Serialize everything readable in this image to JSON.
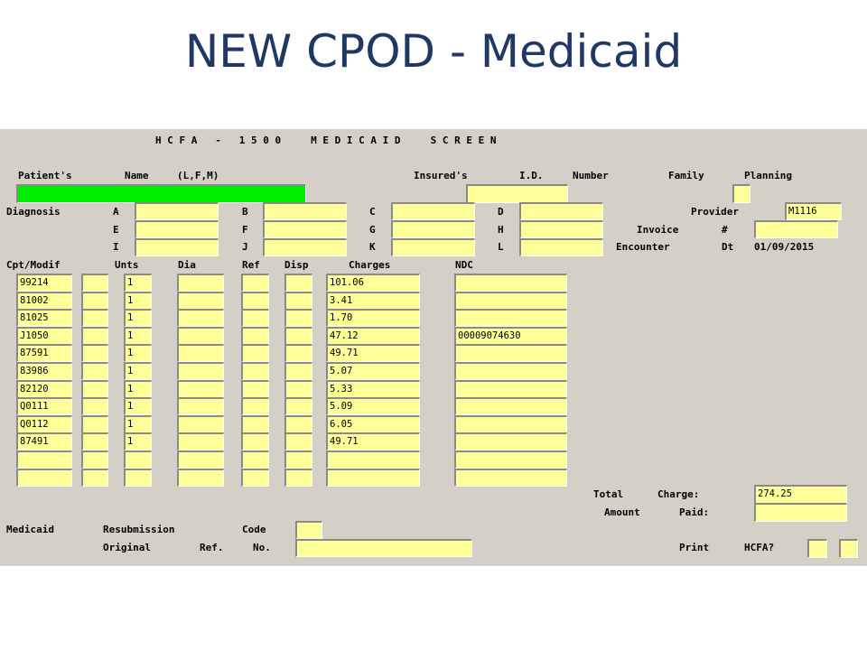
{
  "slide": {
    "title": "NEW CPOD - Medicaid"
  },
  "screen": {
    "heading": "H C F A   -   1 5 0 0     M E D I C A I D     S C R E E N",
    "patient": {
      "label": "Patient's",
      "name_label": "Name",
      "name_format": "(L,F,M)",
      "name_value": ""
    },
    "insured": {
      "label": "Insured's",
      "id_label": "I.D.",
      "number_label": "Number",
      "value": ""
    },
    "family_planning": {
      "family_label": "Family",
      "planning_label": "Planning",
      "value": ""
    },
    "provider": {
      "label": "Provider",
      "value": "M1116"
    },
    "invoice": {
      "label": "Invoice",
      "hash": "#",
      "value": ""
    },
    "encounter": {
      "label": "Encounter",
      "dt_label": "Dt",
      "value": "01/09/2015"
    },
    "diagnosis": {
      "label": "Diagnosis",
      "codes": [
        {
          "letter": "A",
          "value": ""
        },
        {
          "letter": "B",
          "value": ""
        },
        {
          "letter": "C",
          "value": ""
        },
        {
          "letter": "D",
          "value": ""
        },
        {
          "letter": "E",
          "value": ""
        },
        {
          "letter": "F",
          "value": ""
        },
        {
          "letter": "G",
          "value": ""
        },
        {
          "letter": "H",
          "value": ""
        },
        {
          "letter": "I",
          "value": ""
        },
        {
          "letter": "J",
          "value": ""
        },
        {
          "letter": "K",
          "value": ""
        },
        {
          "letter": "L",
          "value": ""
        }
      ]
    },
    "lines": {
      "headers": {
        "cpt": "Cpt/Modif",
        "units": "Unts",
        "dia": "Dia",
        "ref": "Ref",
        "disp": "Disp",
        "charges": "Charges",
        "ndc": "NDC"
      },
      "rows": [
        {
          "cpt": "99214",
          "modif": "",
          "units": "1",
          "dia": "",
          "ref": "",
          "disp": "",
          "charges": "101.06",
          "ndc": ""
        },
        {
          "cpt": "81002",
          "modif": "",
          "units": "1",
          "dia": "",
          "ref": "",
          "disp": "",
          "charges": "3.41",
          "ndc": ""
        },
        {
          "cpt": "81025",
          "modif": "",
          "units": "1",
          "dia": "",
          "ref": "",
          "disp": "",
          "charges": "1.70",
          "ndc": ""
        },
        {
          "cpt": "J1050",
          "modif": "",
          "units": "1",
          "dia": "",
          "ref": "",
          "disp": "",
          "charges": "47.12",
          "ndc": "00009074630"
        },
        {
          "cpt": "87591",
          "modif": "",
          "units": "1",
          "dia": "",
          "ref": "",
          "disp": "",
          "charges": "49.71",
          "ndc": ""
        },
        {
          "cpt": "83986",
          "modif": "",
          "units": "1",
          "dia": "",
          "ref": "",
          "disp": "",
          "charges": "5.07",
          "ndc": ""
        },
        {
          "cpt": "82120",
          "modif": "",
          "units": "1",
          "dia": "",
          "ref": "",
          "disp": "",
          "charges": "5.33",
          "ndc": ""
        },
        {
          "cpt": "Q0111",
          "modif": "",
          "units": "1",
          "dia": "",
          "ref": "",
          "disp": "",
          "charges": "5.09",
          "ndc": ""
        },
        {
          "cpt": "Q0112",
          "modif": "",
          "units": "1",
          "dia": "",
          "ref": "",
          "disp": "",
          "charges": "6.05",
          "ndc": ""
        },
        {
          "cpt": "87491",
          "modif": "",
          "units": "1",
          "dia": "",
          "ref": "",
          "disp": "",
          "charges": "49.71",
          "ndc": ""
        },
        {
          "cpt": "",
          "modif": "",
          "units": "",
          "dia": "",
          "ref": "",
          "disp": "",
          "charges": "",
          "ndc": ""
        },
        {
          "cpt": "",
          "modif": "",
          "units": "",
          "dia": "",
          "ref": "",
          "disp": "",
          "charges": "",
          "ndc": ""
        }
      ]
    },
    "totals": {
      "total_label": "Total",
      "charge_label": "Charge:",
      "charge_value": "274.25",
      "amount_label": "Amount",
      "paid_label": "Paid:",
      "paid_value": ""
    },
    "resubmission": {
      "medicaid_label": "Medicaid",
      "resubmission_label": "Resubmission",
      "code_label": "Code",
      "code_value": "",
      "original_label": "Original",
      "ref_label": "Ref.",
      "no_label": "No.",
      "ref_value": ""
    },
    "print": {
      "print_label": "Print",
      "hcfa_label": "HCFA?",
      "value1": "",
      "value2": ""
    }
  },
  "colors": {
    "title": "#1f3864",
    "screen_bg": "#d4d0c8",
    "field_bg": "#ffff99",
    "highlight": "#00ee00"
  }
}
